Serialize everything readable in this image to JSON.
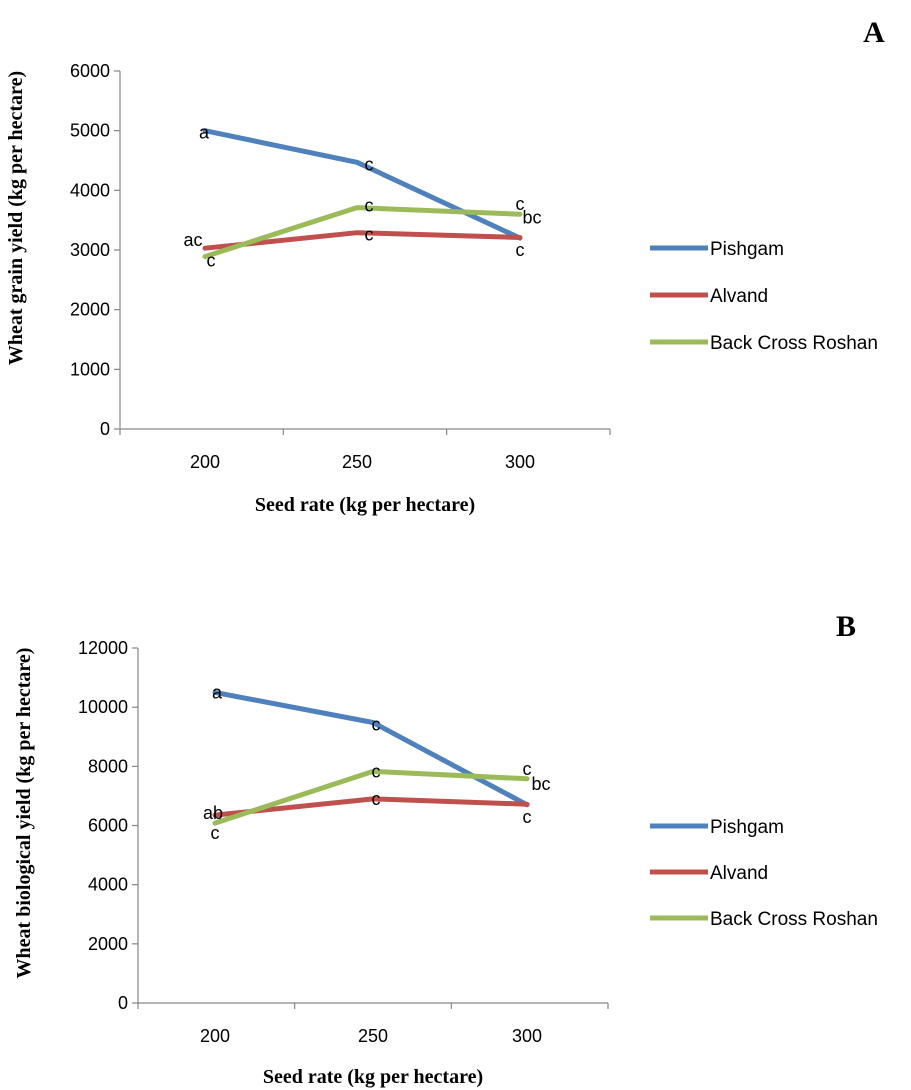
{
  "chart_data": [
    {
      "type": "line",
      "panel_label": "A",
      "xlabel": "Seed rate (kg per hectare)",
      "ylabel": "Wheat grain yield (kg per hectare)",
      "categories": [
        "200",
        "250",
        "300"
      ],
      "ylim": [
        0,
        6000
      ],
      "yticks": [
        "0",
        "1000",
        "2000",
        "3000",
        "4000",
        "5000",
        "6000"
      ],
      "grid": false,
      "legend_position": "right",
      "series": [
        {
          "name": "Pishgam",
          "color": "#4F81BD",
          "values": [
            5000,
            4470,
            3200
          ],
          "labels": [
            "a",
            "c",
            "c"
          ]
        },
        {
          "name": "Alvand",
          "color": "#C0504D",
          "values": [
            3030,
            3290,
            3210
          ],
          "labels": [
            "ac",
            "c",
            "bc"
          ]
        },
        {
          "name": "Back Cross Roshan",
          "color": "#9BBB59",
          "values": [
            2890,
            3710,
            3600
          ],
          "labels": [
            "c",
            "c",
            "c"
          ]
        }
      ]
    },
    {
      "type": "line",
      "panel_label": "B",
      "xlabel": "Seed rate (kg per hectare)",
      "ylabel": "Wheat biological yield (kg per hectare)",
      "categories": [
        "200",
        "250",
        "300"
      ],
      "ylim": [
        0,
        12000
      ],
      "yticks": [
        "0",
        "2000",
        "4000",
        "6000",
        "8000",
        "10000",
        "12000"
      ],
      "grid": false,
      "legend_position": "right",
      "series": [
        {
          "name": "Pishgam",
          "color": "#4F81BD",
          "values": [
            10500,
            9480,
            6700
          ],
          "labels": [
            "a",
            "c",
            "c"
          ]
        },
        {
          "name": "Alvand",
          "color": "#C0504D",
          "values": [
            6350,
            6900,
            6720
          ],
          "labels": [
            "ab",
            "c",
            "bc"
          ]
        },
        {
          "name": "Back Cross Roshan",
          "color": "#9BBB59",
          "values": [
            6080,
            7830,
            7580
          ],
          "labels": [
            "c",
            "c",
            "c"
          ]
        }
      ]
    }
  ]
}
